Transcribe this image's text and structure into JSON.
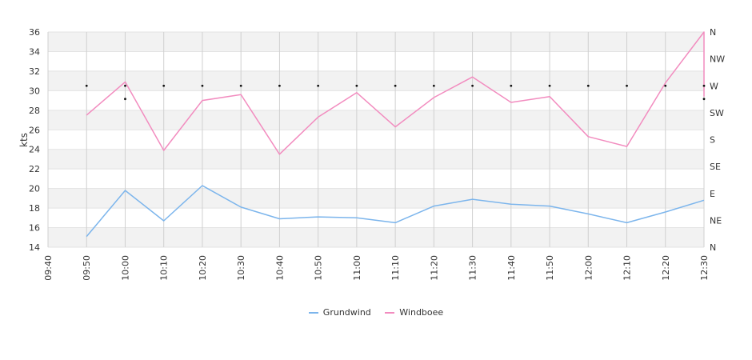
{
  "chart_data": {
    "type": "line",
    "ylabel": "kts",
    "ylim": [
      14,
      36
    ],
    "y_ticks": [
      14,
      16,
      18,
      20,
      22,
      24,
      26,
      28,
      30,
      32,
      34,
      36
    ],
    "x_ticks": [
      "09:40",
      "09:50",
      "10:00",
      "10:10",
      "10:20",
      "10:30",
      "10:40",
      "10:50",
      "11:00",
      "11:10",
      "11:20",
      "11:30",
      "11:40",
      "11:50",
      "12:00",
      "12:10",
      "12:20",
      "12:30"
    ],
    "direction_axis": [
      "N",
      "NE",
      "E",
      "SE",
      "S",
      "SW",
      "W",
      "NW",
      "N"
    ],
    "direction_markers": {
      "x": [
        "09:50",
        "10:00",
        "10:00",
        "10:10",
        "10:20",
        "10:30",
        "10:40",
        "10:50",
        "11:00",
        "11:10",
        "11:20",
        "11:30",
        "11:40",
        "11:50",
        "12:00",
        "12:10",
        "12:20",
        "12:30",
        "12:30"
      ],
      "direction_deg": [
        270,
        270,
        248,
        270,
        270,
        270,
        270,
        270,
        270,
        270,
        270,
        270,
        270,
        270,
        270,
        270,
        270,
        270,
        248
      ]
    },
    "grid": true,
    "legend_position": "bottom",
    "series": [
      {
        "name": "Grundwind",
        "color": "#7cb5ec",
        "x": [
          "09:50",
          "10:00",
          "10:10",
          "10:20",
          "10:30",
          "10:40",
          "10:50",
          "11:00",
          "11:10",
          "11:20",
          "11:30",
          "11:40",
          "11:50",
          "12:00",
          "12:10",
          "12:20",
          "12:30"
        ],
        "values": [
          15.1,
          19.8,
          16.7,
          20.3,
          18.1,
          16.9,
          17.1,
          17.0,
          16.5,
          18.2,
          18.9,
          18.4,
          18.2,
          17.4,
          16.5,
          17.6,
          18.8
        ]
      },
      {
        "name": "Windboee",
        "color": "#f28cbf",
        "x": [
          "09:50",
          "10:00",
          "10:10",
          "10:20",
          "10:30",
          "10:40",
          "10:50",
          "11:00",
          "11:10",
          "11:20",
          "11:30",
          "11:40",
          "11:50",
          "12:00",
          "12:10",
          "12:20",
          "12:30",
          "12:30"
        ],
        "values": [
          27.5,
          30.9,
          23.9,
          29.0,
          29.6,
          23.5,
          27.3,
          29.8,
          26.3,
          29.3,
          31.4,
          28.8,
          29.4,
          25.3,
          24.3,
          30.8,
          36.0,
          29.4
        ]
      }
    ]
  }
}
